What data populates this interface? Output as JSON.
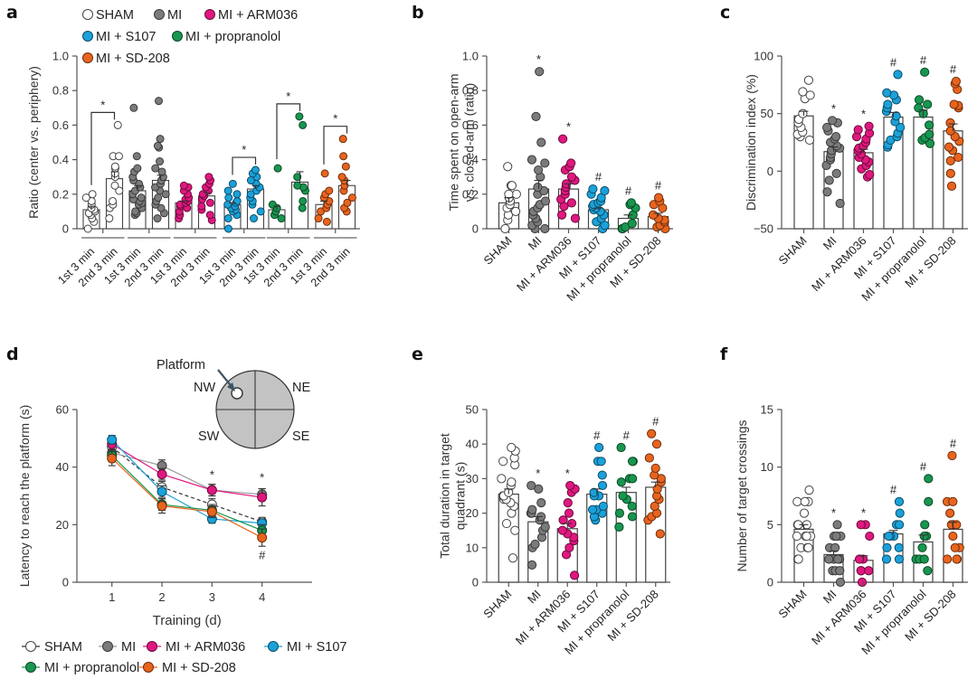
{
  "groups": [
    {
      "name": "SHAM",
      "color": "#ffffff",
      "stroke": "#444444"
    },
    {
      "name": "MI",
      "color": "#7b7b7b",
      "stroke": "#3a3a3a"
    },
    {
      "name": "MI + ARM036",
      "color": "#e0187f",
      "stroke": "#6a0b3c"
    },
    {
      "name": "MI + S107",
      "color": "#1ba1d9",
      "stroke": "#0c4d68"
    },
    {
      "name": "MI + propranolol",
      "color": "#18964f",
      "stroke": "#0a4726"
    },
    {
      "name": "MI + SD-208",
      "color": "#e8641e",
      "stroke": "#6e2e0c"
    }
  ],
  "legend_top": [
    "SHAM",
    "MI",
    "MI + ARM036",
    "MI + S107",
    "MI + propranolol",
    "MI + SD-208"
  ],
  "legend_bottom": [
    "SHAM",
    "MI",
    "MI + ARM036",
    "MI + S107",
    "MI + propranolol",
    "MI + SD-208"
  ],
  "chart_data": [
    {
      "panel": "a",
      "type": "bar",
      "ylabel": "Ratio (center vs. periphery)",
      "ylim": [
        0,
        1.0
      ],
      "yticks": [
        "0",
        "0.2",
        "0.4",
        "0.6",
        "0.8",
        "1.0"
      ],
      "categories": [
        "1st 3 min",
        "2nd 3 min"
      ],
      "series": [
        {
          "name": "SHAM",
          "means": [
            0.11,
            0.29
          ],
          "sem": [
            0.02,
            0.04
          ],
          "points": [
            [
              0.0,
              0.04,
              0.06,
              0.08,
              0.09,
              0.1,
              0.11,
              0.12,
              0.14,
              0.16,
              0.18,
              0.2
            ],
            [
              0.06,
              0.12,
              0.14,
              0.16,
              0.22,
              0.25,
              0.3,
              0.32,
              0.35,
              0.36,
              0.42,
              0.42,
              0.6
            ]
          ],
          "sig": "*"
        },
        {
          "name": "MI",
          "means": [
            0.22,
            0.28
          ],
          "sem": [
            0.03,
            0.03
          ],
          "points": [
            [
              0.08,
              0.09,
              0.1,
              0.12,
              0.14,
              0.15,
              0.16,
              0.17,
              0.18,
              0.2,
              0.22,
              0.24,
              0.26,
              0.28,
              0.3,
              0.33,
              0.35,
              0.42,
              0.7
            ],
            [
              0.06,
              0.09,
              0.12,
              0.14,
              0.16,
              0.18,
              0.2,
              0.22,
              0.24,
              0.26,
              0.28,
              0.3,
              0.33,
              0.35,
              0.39,
              0.47,
              0.48,
              0.52,
              0.74
            ]
          ]
        },
        {
          "name": "MI + ARM036",
          "means": [
            0.15,
            0.19
          ],
          "sem": [
            0.01,
            0.02
          ],
          "points": [
            [
              0.06,
              0.08,
              0.1,
              0.12,
              0.13,
              0.14,
              0.15,
              0.16,
              0.17,
              0.18,
              0.2,
              0.22,
              0.24,
              0.25
            ],
            [
              0.05,
              0.08,
              0.11,
              0.13,
              0.15,
              0.17,
              0.19,
              0.2,
              0.22,
              0.24,
              0.26,
              0.28,
              0.3
            ]
          ]
        },
        {
          "name": "MI + S107",
          "means": [
            0.14,
            0.23
          ],
          "sem": [
            0.01,
            0.02
          ],
          "points": [
            [
              0.0,
              0.06,
              0.08,
              0.1,
              0.11,
              0.12,
              0.13,
              0.14,
              0.15,
              0.16,
              0.18,
              0.2,
              0.22,
              0.26
            ],
            [
              0.06,
              0.1,
              0.14,
              0.16,
              0.18,
              0.2,
              0.22,
              0.24,
              0.26,
              0.28,
              0.3,
              0.32,
              0.34
            ]
          ],
          "sig": "*"
        },
        {
          "name": "MI + propranolol",
          "means": [
            0.11,
            0.27
          ],
          "sem": [
            0.02,
            0.06
          ],
          "points": [
            [
              0.06,
              0.08,
              0.1,
              0.12,
              0.14,
              0.35
            ],
            [
              0.12,
              0.16,
              0.22,
              0.24,
              0.25,
              0.3,
              0.6,
              0.65
            ]
          ],
          "sig": "*"
        },
        {
          "name": "MI + SD-208",
          "means": [
            0.14,
            0.25
          ],
          "sem": [
            0.02,
            0.03
          ],
          "points": [
            [
              0.04,
              0.06,
              0.1,
              0.12,
              0.14,
              0.16,
              0.18,
              0.2,
              0.22,
              0.32
            ],
            [
              0.1,
              0.12,
              0.15,
              0.18,
              0.22,
              0.25,
              0.28,
              0.3,
              0.36,
              0.42,
              0.52
            ]
          ],
          "sig": "*"
        }
      ]
    },
    {
      "panel": "b",
      "type": "bar",
      "ylabel": "Time spent on open-arm vs. closed-arm (ratio)",
      "ylabel_lines": [
        "Time spent on open-arm",
        "vs. closed-arm (ratio)"
      ],
      "ylim": [
        0,
        1.0
      ],
      "yticks": [
        "0",
        "0.2",
        "0.4",
        "0.6",
        "0.8",
        "1.0"
      ],
      "categories": [
        "SHAM",
        "MI",
        "MI + ARM036",
        "MI + S107",
        "MI + propranolol",
        "MI + SD-208"
      ],
      "values": [
        0.15,
        0.23,
        0.23,
        0.11,
        0.06,
        0.07
      ],
      "sem": [
        0.03,
        0.05,
        0.03,
        0.01,
        0.02,
        0.02
      ],
      "significance": [
        "",
        "*",
        "*",
        "#",
        "#",
        "#"
      ],
      "points": [
        [
          0.0,
          0.05,
          0.08,
          0.1,
          0.12,
          0.14,
          0.16,
          0.18,
          0.2,
          0.2,
          0.25,
          0.25,
          0.36
        ],
        [
          0.0,
          0.0,
          0.02,
          0.04,
          0.06,
          0.08,
          0.1,
          0.12,
          0.14,
          0.16,
          0.2,
          0.22,
          0.24,
          0.3,
          0.34,
          0.38,
          0.4,
          0.5,
          0.65,
          0.91
        ],
        [
          0.06,
          0.08,
          0.13,
          0.15,
          0.17,
          0.2,
          0.22,
          0.24,
          0.26,
          0.28,
          0.3,
          0.34,
          0.36,
          0.38,
          0.52
        ],
        [
          0.0,
          0.02,
          0.04,
          0.06,
          0.08,
          0.1,
          0.11,
          0.12,
          0.13,
          0.14,
          0.15,
          0.16,
          0.18,
          0.2,
          0.22,
          0.23
        ],
        [
          0.0,
          0.0,
          0.01,
          0.03,
          0.08,
          0.12,
          0.14,
          0.15
        ],
        [
          0.0,
          0.01,
          0.02,
          0.04,
          0.05,
          0.06,
          0.08,
          0.12,
          0.14,
          0.16,
          0.18
        ]
      ]
    },
    {
      "panel": "c",
      "type": "bar",
      "ylabel": "Discrimination index (%)",
      "ylim": [
        -50,
        100
      ],
      "yticks": [
        "-50",
        "0",
        "50",
        "100"
      ],
      "categories": [
        "SHAM",
        "MI",
        "MI + ARM036",
        "MI + S107",
        "MI + propranolol",
        "MI + SD-208"
      ],
      "values": [
        48,
        17,
        16,
        47,
        47,
        35
      ],
      "sem": [
        4,
        4,
        3,
        4,
        6,
        6
      ],
      "significance": [
        "",
        "*",
        "*",
        "#",
        "#",
        "#"
      ],
      "points": [
        [
          27,
          30,
          32,
          34,
          38,
          42,
          45,
          50,
          63,
          66,
          69,
          79
        ],
        [
          -28,
          -18,
          -8,
          -2,
          5,
          10,
          12,
          15,
          18,
          20,
          22,
          25,
          28,
          30,
          35,
          38,
          42,
          44
        ],
        [
          -5,
          -3,
          2,
          5,
          8,
          10,
          12,
          15,
          18,
          20,
          22,
          25,
          28,
          30,
          33,
          36,
          39
        ],
        [
          21,
          23,
          27,
          30,
          33,
          38,
          43,
          48,
          52,
          55,
          58,
          62,
          66,
          68,
          84
        ],
        [
          24,
          27,
          29,
          32,
          40,
          50,
          55,
          58,
          62,
          86
        ],
        [
          -13,
          -2,
          9,
          12,
          18,
          21,
          26,
          30,
          35,
          42,
          55,
          57,
          58,
          71,
          76,
          78
        ]
      ]
    },
    {
      "panel": "d",
      "type": "line",
      "xlabel": "Training (d)",
      "ylabel": "Latency to reach the platform (s)",
      "ylim": [
        0,
        60
      ],
      "yticks": [
        "0",
        "20",
        "40",
        "60"
      ],
      "xlim": [
        0.3,
        5.0
      ],
      "x": [
        1,
        2,
        3,
        4
      ],
      "xticks": [
        "1",
        "2",
        "3",
        "4"
      ],
      "series": [
        {
          "name": "SHAM",
          "values": [
            47,
            33,
            27,
            21
          ],
          "sem": [
            2,
            2,
            2,
            1.5
          ],
          "dashed": true
        },
        {
          "name": "MI",
          "values": [
            45,
            40.5,
            32,
            30.5
          ],
          "sem": [
            2,
            2,
            2,
            2
          ]
        },
        {
          "name": "MI + ARM036",
          "values": [
            48,
            37.5,
            32,
            29.5
          ],
          "sem": [
            2,
            2,
            2,
            3
          ]
        },
        {
          "name": "MI + S107",
          "values": [
            49.5,
            31.5,
            22,
            20.5
          ],
          "sem": [
            1.5,
            2,
            1.5,
            1.5
          ]
        },
        {
          "name": "MI + propranolol",
          "values": [
            44,
            27,
            25,
            18
          ],
          "sem": [
            2,
            2,
            2,
            2
          ]
        },
        {
          "name": "MI + SD-208",
          "values": [
            43,
            26.5,
            24.5,
            15.5
          ],
          "sem": [
            2.5,
            2.5,
            2,
            3
          ]
        }
      ],
      "annotations": [
        {
          "x": 3,
          "text": "*",
          "y": 36
        },
        {
          "x": 4,
          "text": "*",
          "y": 35
        },
        {
          "x": 4,
          "text": "#",
          "y": 8
        }
      ],
      "inset": {
        "label": "Platform",
        "quadrants": [
          "NW",
          "NE",
          "SW",
          "SE"
        ]
      }
    },
    {
      "panel": "e",
      "type": "bar",
      "ylabel": "Total duration in target quadrant (s)",
      "ylabel_lines": [
        "Total duration in target",
        "quadrant (s)"
      ],
      "ylim": [
        0,
        50
      ],
      "yticks": [
        "0",
        "10",
        "20",
        "30",
        "40",
        "50"
      ],
      "categories": [
        "SHAM",
        "MI",
        "MI + ARM036",
        "MI + S107",
        "MI + propranolol",
        "MI + SD-208"
      ],
      "values": [
        25.5,
        17.5,
        15.5,
        25.5,
        26,
        27.5
      ],
      "sem": [
        1.5,
        1.5,
        1.5,
        1.5,
        1.5,
        1.5
      ],
      "significance": [
        "",
        "*",
        "*",
        "#",
        "#",
        "#"
      ],
      "points": [
        [
          7,
          15,
          17,
          20,
          22,
          23,
          24,
          24,
          25,
          25,
          26,
          28,
          29,
          30,
          34,
          35,
          36,
          38,
          39
        ],
        [
          5,
          10,
          11,
          13,
          15,
          16,
          18,
          19,
          20,
          20,
          21,
          23,
          27,
          28
        ],
        [
          2,
          8,
          10,
          12,
          13,
          14,
          15,
          17,
          18,
          20,
          23,
          26,
          27,
          28
        ],
        [
          18,
          19,
          19,
          20,
          21,
          21,
          22,
          25,
          25,
          26,
          28,
          31,
          35,
          35,
          39
        ],
        [
          16,
          19,
          20,
          22,
          24,
          25,
          29,
          30,
          30,
          35,
          35,
          39
        ],
        [
          14,
          18,
          19,
          20,
          22,
          24,
          25,
          27,
          29,
          30,
          31,
          33,
          36,
          40,
          43
        ]
      ]
    },
    {
      "panel": "f",
      "type": "bar",
      "ylabel": "Number of target crossings",
      "ylim": [
        0,
        15
      ],
      "yticks": [
        "0",
        "5",
        "10",
        "15"
      ],
      "categories": [
        "SHAM",
        "MI",
        "MI + ARM036",
        "MI + S107",
        "MI + propranolol",
        "MI + SD-208"
      ],
      "values": [
        4.6,
        2.4,
        1.9,
        4.2,
        3.5,
        4.6
      ],
      "sem": [
        0.4,
        0.3,
        0.4,
        0.3,
        0.6,
        0.6
      ],
      "significance": [
        "",
        "*",
        "*",
        "#",
        "#",
        "#"
      ],
      "points": [
        [
          2,
          2,
          3,
          3,
          3,
          4,
          4,
          4,
          4,
          5,
          5,
          5,
          6,
          7,
          7,
          7,
          8
        ],
        [
          0,
          1,
          1,
          1,
          2,
          2,
          2,
          2,
          3,
          3,
          4,
          4,
          4,
          4,
          5
        ],
        [
          0,
          1,
          1,
          1,
          2,
          2,
          4,
          5,
          5
        ],
        [
          2,
          2,
          3,
          3,
          4,
          4,
          4,
          5,
          5,
          6,
          7
        ],
        [
          1,
          2,
          2,
          2,
          3,
          4,
          4,
          5,
          7,
          9
        ],
        [
          2,
          2,
          2,
          3,
          3,
          4,
          5,
          5,
          5,
          6,
          7,
          7,
          11
        ]
      ]
    }
  ]
}
